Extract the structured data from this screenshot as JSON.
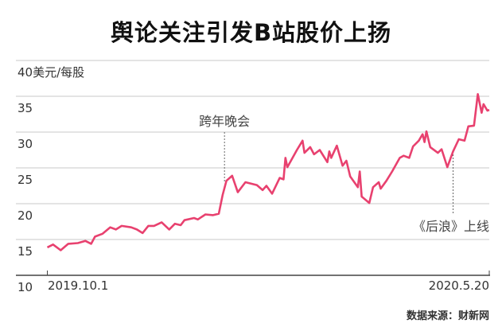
{
  "chart_data": {
    "type": "line",
    "title": "舆论关注引发B站股价上扬",
    "ylabel": "美元/每股",
    "ylim": [
      10,
      40
    ],
    "yticks": [
      "40美元/每股",
      "35",
      "30",
      "25",
      "20",
      "15",
      "10"
    ],
    "xlim": [
      "2019-10-01",
      "2020-05-20"
    ],
    "xticks": [
      "2019.10.1",
      "2020.5.20"
    ],
    "grid": true,
    "line_color": "#e8416f",
    "series": [
      {
        "points": [
          [
            "2019-10-01",
            13.9
          ],
          [
            "2019-10-04",
            14.3
          ],
          [
            "2019-10-08",
            13.5
          ],
          [
            "2019-10-12",
            14.4
          ],
          [
            "2019-10-17",
            14.5
          ],
          [
            "2019-10-21",
            14.8
          ],
          [
            "2019-10-24",
            14.4
          ],
          [
            "2019-10-26",
            15.4
          ],
          [
            "2019-10-30",
            15.8
          ],
          [
            "2019-11-03",
            16.7
          ],
          [
            "2019-11-06",
            16.4
          ],
          [
            "2019-11-09",
            16.9
          ],
          [
            "2019-11-14",
            16.7
          ],
          [
            "2019-11-17",
            16.4
          ],
          [
            "2019-11-20",
            15.9
          ],
          [
            "2019-11-23",
            16.9
          ],
          [
            "2019-11-26",
            16.9
          ],
          [
            "2019-11-30",
            17.4
          ],
          [
            "2019-12-04",
            16.4
          ],
          [
            "2019-12-07",
            17.2
          ],
          [
            "2019-12-10",
            17.0
          ],
          [
            "2019-12-12",
            17.7
          ],
          [
            "2019-12-17",
            18.0
          ],
          [
            "2019-12-19",
            17.8
          ],
          [
            "2019-12-23",
            18.5
          ],
          [
            "2019-12-27",
            18.4
          ],
          [
            "2019-12-30",
            18.6
          ],
          [
            "2020-01-01",
            21.2
          ],
          [
            "2020-01-03",
            23.2
          ],
          [
            "2020-01-06",
            23.9
          ],
          [
            "2020-01-09",
            21.6
          ],
          [
            "2020-01-13",
            23.0
          ],
          [
            "2020-01-19",
            22.6
          ],
          [
            "2020-01-22",
            21.9
          ],
          [
            "2020-01-24",
            22.5
          ],
          [
            "2020-01-27",
            21.4
          ],
          [
            "2020-01-31",
            23.6
          ],
          [
            "2020-02-02",
            23.4
          ],
          [
            "2020-02-03",
            26.4
          ],
          [
            "2020-02-04",
            25.1
          ],
          [
            "2020-02-09",
            27.5
          ],
          [
            "2020-02-12",
            28.8
          ],
          [
            "2020-02-13",
            27.1
          ],
          [
            "2020-02-16",
            27.9
          ],
          [
            "2020-02-18",
            26.9
          ],
          [
            "2020-02-21",
            27.5
          ],
          [
            "2020-02-25",
            25.8
          ],
          [
            "2020-02-26",
            27.3
          ],
          [
            "2020-02-27",
            26.4
          ],
          [
            "2020-03-01",
            28.1
          ],
          [
            "2020-03-04",
            25.3
          ],
          [
            "2020-03-06",
            26.0
          ],
          [
            "2020-03-08",
            23.8
          ],
          [
            "2020-03-12",
            22.3
          ],
          [
            "2020-03-13",
            24.5
          ],
          [
            "2020-03-14",
            21.0
          ],
          [
            "2020-03-18",
            20.1
          ],
          [
            "2020-03-20",
            22.3
          ],
          [
            "2020-03-23",
            23.0
          ],
          [
            "2020-03-24",
            22.1
          ],
          [
            "2020-03-27",
            23.2
          ],
          [
            "2020-03-30",
            24.5
          ],
          [
            "2020-04-03",
            26.4
          ],
          [
            "2020-04-05",
            26.7
          ],
          [
            "2020-04-08",
            26.4
          ],
          [
            "2020-04-10",
            28.0
          ],
          [
            "2020-04-13",
            28.8
          ],
          [
            "2020-04-15",
            29.7
          ],
          [
            "2020-04-16",
            28.6
          ],
          [
            "2020-04-17",
            30.1
          ],
          [
            "2020-04-19",
            27.9
          ],
          [
            "2020-04-23",
            27.1
          ],
          [
            "2020-04-25",
            27.6
          ],
          [
            "2020-04-28",
            25.1
          ],
          [
            "2020-05-01",
            27.3
          ],
          [
            "2020-05-04",
            29.0
          ],
          [
            "2020-05-07",
            28.8
          ],
          [
            "2020-05-09",
            30.8
          ],
          [
            "2020-05-12",
            30.9
          ],
          [
            "2020-05-14",
            35.3
          ],
          [
            "2020-05-16",
            32.7
          ],
          [
            "2020-05-17",
            33.9
          ],
          [
            "2020-05-19",
            33.0
          ],
          [
            "2020-05-20",
            33.1
          ]
        ]
      }
    ],
    "annotations": [
      {
        "text": "跨年晚会",
        "date": "2020-01-02"
      },
      {
        "text": "《后浪》上线",
        "date": "2020-05-01"
      }
    ]
  },
  "source": "数据来源：财新网"
}
